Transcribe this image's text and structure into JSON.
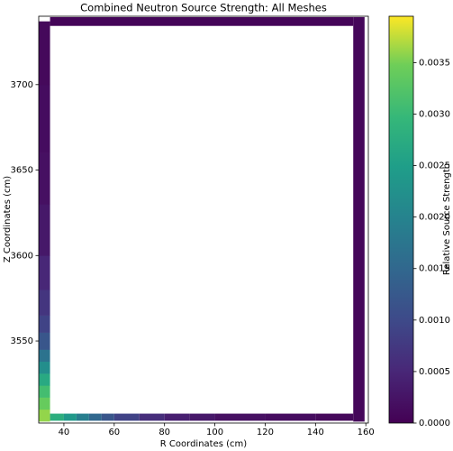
{
  "chart_data": {
    "type": "mesh",
    "title": "Combined Neutron Source Strength: All Meshes",
    "x_label": "R Coordinates (cm)",
    "y_label": "Z Coordinates (cm)",
    "colorbar_label": "Relative Source Strength",
    "colormap": "viridis",
    "xlim": [
      30,
      161
    ],
    "ylim": [
      3502,
      3740
    ],
    "xticks": [
      40,
      60,
      80,
      100,
      120,
      140,
      160
    ],
    "yticks": [
      3550,
      3600,
      3650,
      3700
    ],
    "clim": [
      0,
      0.00395
    ],
    "cticks": [
      {
        "value": 0,
        "label": "0.0000"
      },
      {
        "value": 0.0005,
        "label": "0.0005"
      },
      {
        "value": 0.001,
        "label": "0.0010"
      },
      {
        "value": 0.0015,
        "label": "0.0015"
      },
      {
        "value": 0.002,
        "label": "0.0020"
      },
      {
        "value": 0.0025,
        "label": "0.0025"
      },
      {
        "value": 0.003,
        "label": "0.0030"
      },
      {
        "value": 0.0035,
        "label": "0.0035"
      }
    ],
    "meshes": [
      {
        "xedges": [
          30,
          34.5
        ],
        "yedges": [
          3503,
          3510,
          3517,
          3524,
          3531,
          3538,
          3545,
          3555,
          3565,
          3580,
          3600,
          3630,
          3660,
          3700,
          3737
        ],
        "values": [
          0.0036,
          0.0034,
          0.0031,
          0.0027,
          0.0022,
          0.0017,
          0.0012,
          0.0009,
          0.0007,
          0.0005,
          0.0003,
          0.0002,
          0.00015,
          0.0001
        ]
      },
      {
        "xedges": [
          34.5,
          40,
          45,
          50,
          55,
          60,
          70,
          80,
          90,
          100,
          120,
          140,
          155
        ],
        "yedges": [
          3503.5,
          3507.5
        ],
        "values": [
          0.0028,
          0.0024,
          0.0019,
          0.0015,
          0.0012,
          0.0009,
          0.0006,
          0.0004,
          0.0003,
          0.0002,
          0.00015,
          0.0001
        ]
      },
      {
        "xedges": [
          34.5,
          155
        ],
        "yedges": [
          3734.5,
          3739.5
        ],
        "values": [
          5e-05
        ]
      },
      {
        "xedges": [
          155,
          159.5
        ],
        "yedges": [
          3503,
          3739.5
        ],
        "values": [
          8e-05
        ]
      }
    ]
  }
}
